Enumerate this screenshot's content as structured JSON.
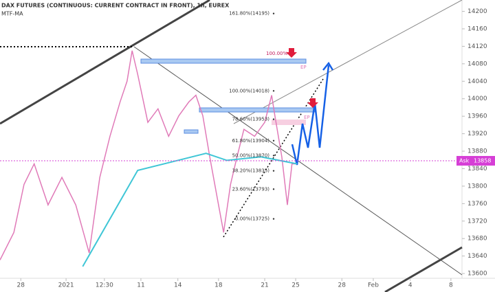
{
  "chart_data": {
    "type": "line",
    "title": "DAX FUTURES (CONTINUOUS: CURRENT CONTRACT IN FRONT), 1h, EUREX",
    "subtitle": "MTF-MA",
    "x": [
      0,
      3,
      5.2,
      7.4,
      10.4,
      13.4,
      16.4,
      19.3,
      21.6,
      23.8,
      26,
      27.5,
      28.6,
      29.8,
      32,
      34.2,
      36.5,
      38.7,
      40.9,
      42.4,
      43.9,
      45.4,
      47.3,
      48.4,
      49.9,
      51.3,
      52.8,
      55.1,
      57.3,
      58.8,
      59.5,
      61,
      62.2,
      63.2,
      64.3
    ],
    "series": [
      {
        "name": "DAX",
        "color": "#e07ab8",
        "values": [
          13631,
          13694,
          13804,
          13851,
          13757,
          13820,
          13757,
          13647,
          13820,
          13914,
          13993,
          14040,
          14110,
          14056,
          13946,
          13977,
          13914,
          13961,
          13993,
          14008,
          13961,
          13867,
          13757,
          13694,
          13804,
          13867,
          13930,
          13914,
          13946,
          14008,
          13961,
          13867,
          13757,
          13851,
          13851
        ]
      },
      {
        "name": "MTF-MA",
        "color": "#3fc6d6",
        "x": [
          17.9,
          29.8,
          44.6,
          49.1,
          56.5,
          64.3
        ],
        "values": [
          13616,
          13836,
          13875,
          13859,
          13867,
          13851
        ]
      }
    ],
    "xlim": [
      0,
      100
    ],
    "xticks": [
      {
        "value": 4.5,
        "label": "28"
      },
      {
        "value": 14.3,
        "label": "2021"
      },
      {
        "value": 22.6,
        "label": "12:30"
      },
      {
        "value": 30.5,
        "label": "11"
      },
      {
        "value": 38.5,
        "label": "14"
      },
      {
        "value": 47.3,
        "label": "18"
      },
      {
        "value": 57.3,
        "label": "21"
      },
      {
        "value": 64,
        "label": "25"
      },
      {
        "value": 74,
        "label": "28"
      },
      {
        "value": 80.8,
        "label": "Feb"
      },
      {
        "value": 88.8,
        "label": "4"
      },
      {
        "value": 97.6,
        "label": "8"
      }
    ],
    "ylim": [
      13597,
      14226
    ],
    "yticks": [
      14200,
      14160,
      14120,
      14080,
      14040,
      14000,
      13960,
      13920,
      13880,
      13840,
      13800,
      13760,
      13720,
      13680,
      13640,
      13600
    ],
    "fib_levels": [
      {
        "label": "161.80%(14195)",
        "value": 14195
      },
      {
        "label": "100.00%(14018)",
        "value": 14018
      },
      {
        "label": "78.60%(13953)",
        "value": 13953
      },
      {
        "label": "61.80%(13904)",
        "value": 13904
      },
      {
        "label": "50.00%(13870)",
        "value": 13870
      },
      {
        "label": "38.20%(13835)",
        "value": 13835
      },
      {
        "label": "23.60%(13793)",
        "value": 13793
      },
      {
        "label": "0.00%(13725)",
        "value": 13725
      }
    ],
    "target_label": "100.00%",
    "entry_labels": [
      "EP",
      "EP"
    ],
    "ask": {
      "label": "Ask",
      "value": 13858
    }
  }
}
